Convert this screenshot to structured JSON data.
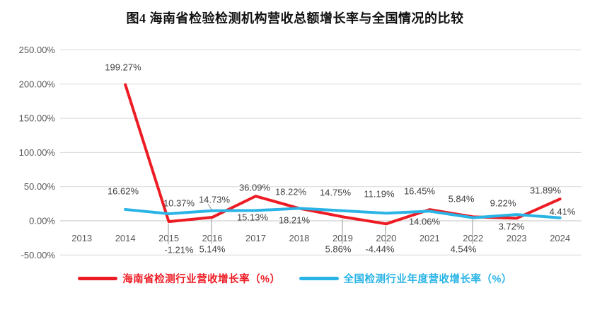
{
  "chart_data": {
    "type": "line",
    "title": "图4 海南省检验检测机构营收总额增长率与全国情况的比较",
    "categories": [
      "2013",
      "2014",
      "2015",
      "2016",
      "2017",
      "2018",
      "2019",
      "2020",
      "2021",
      "2022",
      "2023",
      "2024"
    ],
    "series": [
      {
        "name": "海南省检测行业营收增长率（%）",
        "color": "#ed1c24",
        "values": [
          null,
          199.27,
          -1.21,
          5.14,
          36.09,
          18.22,
          5.86,
          -4.44,
          16.45,
          5.84,
          3.72,
          31.89
        ],
        "labels": [
          "",
          "199.27%",
          "-1.21%",
          "5.14%",
          "36.09%",
          "18.22%",
          "5.86%",
          "-4.44%",
          "16.45%",
          "5.84%",
          "3.72%",
          "31.89%"
        ]
      },
      {
        "name": "全国检测行业年度营收增长率（%）",
        "color": "#2ab4e6",
        "values": [
          null,
          16.62,
          10.37,
          14.73,
          15.13,
          18.21,
          14.75,
          11.19,
          14.06,
          4.54,
          9.22,
          4.41
        ],
        "labels": [
          "",
          "16.62%",
          "10.37%",
          "14.73%",
          "15.13%",
          "18.21%",
          "14.75%",
          "11.19%",
          "14.06%",
          "4.54%",
          "9.22%",
          "4.41%"
        ]
      }
    ],
    "y_axis": {
      "min": -50,
      "max": 250,
      "step": 50,
      "tick_values": [
        250,
        200,
        150,
        100,
        50,
        0,
        -50
      ],
      "tick_labels": [
        "250.00%",
        "200.00%",
        "150.00%",
        "100.00%",
        "50.00%",
        "0.00%",
        "-50.00%"
      ]
    },
    "grid": true,
    "legend_position": "bottom",
    "colors": {
      "gridline": "#d9d9d9",
      "leader": "#a6a6a6",
      "axis_text": "#595959",
      "label_text": "#404040"
    }
  }
}
